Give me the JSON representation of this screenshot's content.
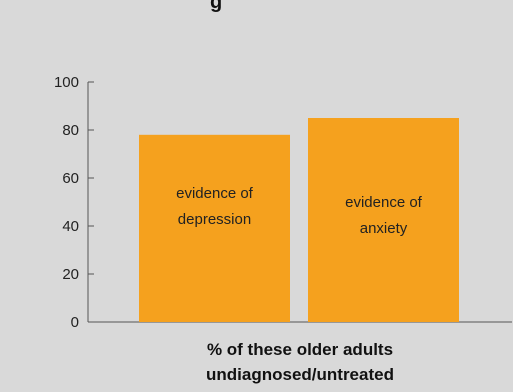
{
  "colors": {
    "background": "#d9d9d9",
    "bar": "#f5a11e",
    "axis": "#555555",
    "text": "#222222"
  },
  "chart_data": {
    "type": "bar",
    "title_fragment": "g",
    "categories": [
      "evidence of depression",
      "evidence of anxiety"
    ],
    "label_lines": [
      [
        "evidence of",
        "depression"
      ],
      [
        "evidence of",
        "anxiety"
      ]
    ],
    "values": [
      78,
      85
    ],
    "ylim": [
      0,
      100
    ],
    "yticks": [
      "0",
      "20",
      "40",
      "60",
      "80",
      "100"
    ],
    "xlabel_lines": [
      "% of these older adults",
      "undiagnosed/untreated"
    ],
    "grid": false,
    "legend": "none"
  }
}
